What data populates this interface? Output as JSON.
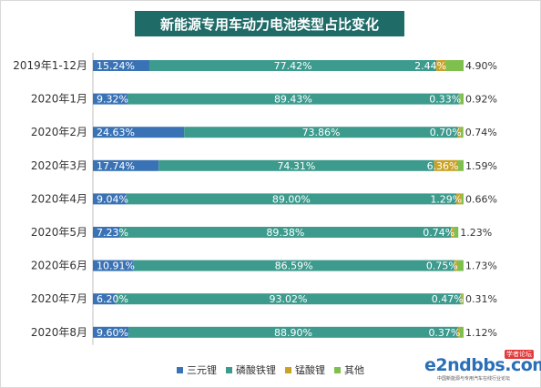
{
  "chart_data": {
    "type": "bar",
    "orientation": "horizontal",
    "stacked": true,
    "title": "新能源专用车动力电池类型占比变化",
    "categories": [
      "2019年1-12月",
      "2020年1月",
      "2020年2月",
      "2020年3月",
      "2020年4月",
      "2020年5月",
      "2020年6月",
      "2020年7月",
      "2020年8月"
    ],
    "series": [
      {
        "name": "三元锂",
        "color": "#3a73b5",
        "values": [
          15.24,
          9.32,
          24.63,
          17.74,
          9.04,
          7.23,
          10.91,
          6.2,
          9.6
        ]
      },
      {
        "name": "磷酸铁锂",
        "color": "#3d9b8e",
        "values": [
          77.42,
          89.43,
          73.86,
          74.31,
          89.0,
          89.38,
          86.59,
          93.02,
          88.9
        ]
      },
      {
        "name": "锰酸锂",
        "color": "#c9a227",
        "values": [
          2.44,
          0.33,
          0.7,
          6.36,
          1.29,
          0.74,
          0.75,
          0.47,
          0.37
        ]
      },
      {
        "name": "其他",
        "color": "#7fbf4d",
        "values": [
          4.9,
          0.92,
          0.74,
          1.59,
          0.66,
          1.23,
          1.73,
          0.31,
          1.12
        ]
      }
    ],
    "value_labels": [
      [
        "15.24%",
        "77.42%",
        "2.44%",
        "4.90%"
      ],
      [
        "9.32%",
        "89.43%",
        "0.33%",
        "0.92%"
      ],
      [
        "24.63%",
        "73.86%",
        "0.70%",
        "0.74%"
      ],
      [
        "17.74%",
        "74.31%",
        "6.36%",
        "1.59%"
      ],
      [
        "9.04%",
        "89.00%",
        "1.29%",
        "0.66%"
      ],
      [
        "7.23%",
        "89.38%",
        "0.74%",
        "1.23%"
      ],
      [
        "10.91%",
        "86.59%",
        "0.75%",
        "1.73%"
      ],
      [
        "6.20%",
        "93.02%",
        "0.47%",
        "0.31%"
      ],
      [
        "9.60%",
        "88.90%",
        "0.37%",
        "1.12%"
      ]
    ],
    "xlim": [
      0,
      100
    ],
    "grid": false,
    "legend_position": "bottom-center"
  },
  "watermark": {
    "brand": "e2ndbbs.com",
    "subtitle": "中国新能源与专用汽车在线行业论坛",
    "badge": "学者论坛"
  }
}
